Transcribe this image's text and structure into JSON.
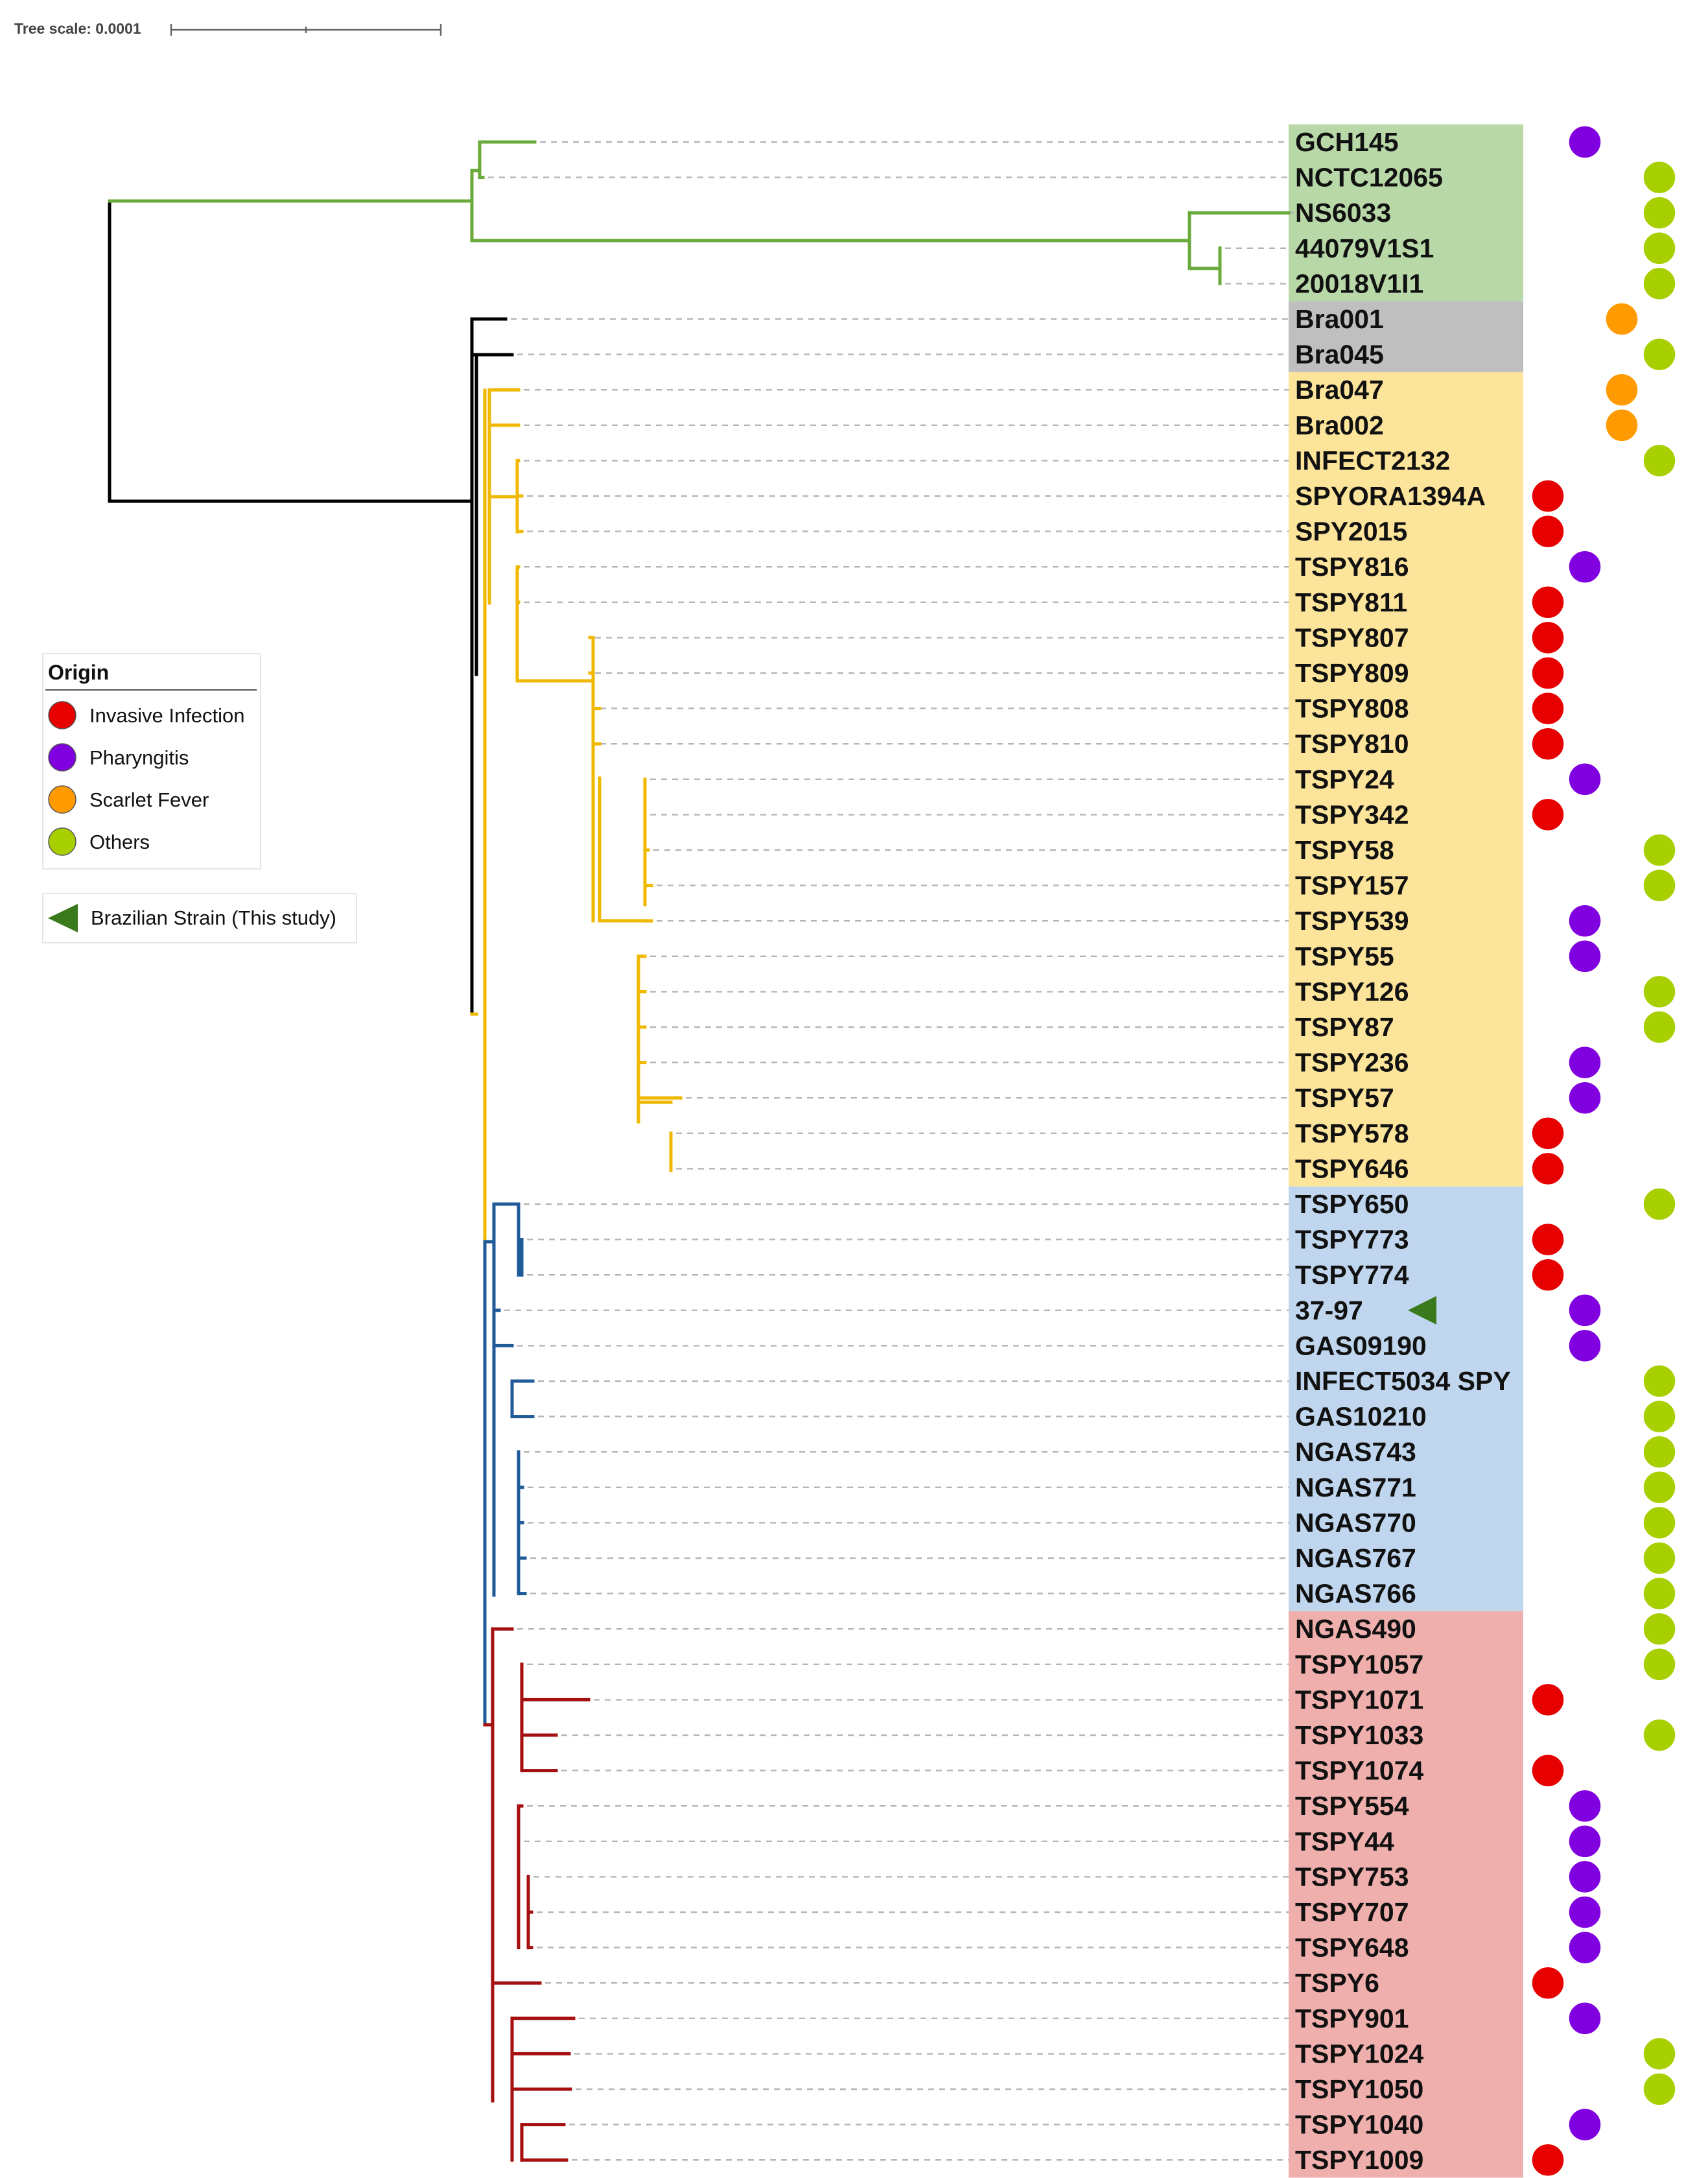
{
  "scale": {
    "label": "Tree scale: 0.0001"
  },
  "legend": {
    "title": "Origin",
    "items": [
      {
        "key": "invasive",
        "label": "Invasive Infection",
        "color": "#e60000"
      },
      {
        "key": "pharyngitis",
        "label": "Pharyngitis",
        "color": "#8000e0"
      },
      {
        "key": "scarlet",
        "label": "Scarlet Fever",
        "color": "#ff9a00"
      },
      {
        "key": "others",
        "label": "Others",
        "color": "#a8d000"
      }
    ],
    "strain_marker": {
      "label": "Brazilian Strain (This study)",
      "color": "#3a7a1c"
    }
  },
  "clade_colors": {
    "green": "#6aaa3a",
    "black": "#000000",
    "yellow": "#f0b800",
    "blue": "#1f5a99",
    "red": "#a60f0f"
  },
  "band_colors": {
    "green": "#b8d8a8",
    "gray": "#bfbfbf",
    "yellow": "#fde49b",
    "blue": "#c0d6ee",
    "red": "#efb0ad"
  },
  "leaves": [
    {
      "label": "GCH145",
      "band": "green",
      "origin": "pharyngitis"
    },
    {
      "label": "NCTC12065",
      "band": "green",
      "origin": "others"
    },
    {
      "label": "NS6033",
      "band": "green",
      "origin": "others"
    },
    {
      "label": "44079V1S1",
      "band": "green",
      "origin": "others"
    },
    {
      "label": "20018V1I1",
      "band": "green",
      "origin": "others"
    },
    {
      "label": "Bra001",
      "band": "gray",
      "origin": "scarlet"
    },
    {
      "label": "Bra045",
      "band": "gray",
      "origin": "others"
    },
    {
      "label": "Bra047",
      "band": "yellow",
      "origin": "scarlet"
    },
    {
      "label": "Bra002",
      "band": "yellow",
      "origin": "scarlet"
    },
    {
      "label": "INFECT2132",
      "band": "yellow",
      "origin": "others"
    },
    {
      "label": "SPYORA1394A",
      "band": "yellow",
      "origin": "invasive"
    },
    {
      "label": "SPY2015",
      "band": "yellow",
      "origin": "invasive"
    },
    {
      "label": "TSPY816",
      "band": "yellow",
      "origin": "pharyngitis"
    },
    {
      "label": "TSPY811",
      "band": "yellow",
      "origin": "invasive"
    },
    {
      "label": "TSPY807",
      "band": "yellow",
      "origin": "invasive"
    },
    {
      "label": "TSPY809",
      "band": "yellow",
      "origin": "invasive"
    },
    {
      "label": "TSPY808",
      "band": "yellow",
      "origin": "invasive"
    },
    {
      "label": "TSPY810",
      "band": "yellow",
      "origin": "invasive"
    },
    {
      "label": "TSPY24",
      "band": "yellow",
      "origin": "pharyngitis"
    },
    {
      "label": "TSPY342",
      "band": "yellow",
      "origin": "invasive"
    },
    {
      "label": "TSPY58",
      "band": "yellow",
      "origin": "others"
    },
    {
      "label": "TSPY157",
      "band": "yellow",
      "origin": "others"
    },
    {
      "label": "TSPY539",
      "band": "yellow",
      "origin": "pharyngitis"
    },
    {
      "label": "TSPY55",
      "band": "yellow",
      "origin": "pharyngitis"
    },
    {
      "label": "TSPY126",
      "band": "yellow",
      "origin": "others"
    },
    {
      "label": "TSPY87",
      "band": "yellow",
      "origin": "others"
    },
    {
      "label": "TSPY236",
      "band": "yellow",
      "origin": "pharyngitis"
    },
    {
      "label": "TSPY57",
      "band": "yellow",
      "origin": "pharyngitis"
    },
    {
      "label": "TSPY578",
      "band": "yellow",
      "origin": "invasive"
    },
    {
      "label": "TSPY646",
      "band": "yellow",
      "origin": "invasive"
    },
    {
      "label": "TSPY650",
      "band": "blue",
      "origin": "others"
    },
    {
      "label": "TSPY773",
      "band": "blue",
      "origin": "invasive"
    },
    {
      "label": "TSPY774",
      "band": "blue",
      "origin": "invasive"
    },
    {
      "label": "37-97",
      "band": "blue",
      "origin": "pharyngitis",
      "brazil": true
    },
    {
      "label": "GAS09190",
      "band": "blue",
      "origin": "pharyngitis"
    },
    {
      "label": "INFECT5034 SPY",
      "band": "blue",
      "origin": "others"
    },
    {
      "label": "GAS10210",
      "band": "blue",
      "origin": "others"
    },
    {
      "label": "NGAS743",
      "band": "blue",
      "origin": "others"
    },
    {
      "label": "NGAS771",
      "band": "blue",
      "origin": "others"
    },
    {
      "label": "NGAS770",
      "band": "blue",
      "origin": "others"
    },
    {
      "label": "NGAS767",
      "band": "blue",
      "origin": "others"
    },
    {
      "label": "NGAS766",
      "band": "blue",
      "origin": "others"
    },
    {
      "label": "NGAS490",
      "band": "red",
      "origin": "others"
    },
    {
      "label": "TSPY1057",
      "band": "red",
      "origin": "others"
    },
    {
      "label": "TSPY1071",
      "band": "red",
      "origin": "invasive"
    },
    {
      "label": "TSPY1033",
      "band": "red",
      "origin": "others"
    },
    {
      "label": "TSPY1074",
      "band": "red",
      "origin": "invasive"
    },
    {
      "label": "TSPY554",
      "band": "red",
      "origin": "pharyngitis"
    },
    {
      "label": "TSPY44",
      "band": "red",
      "origin": "pharyngitis"
    },
    {
      "label": "TSPY753",
      "band": "red",
      "origin": "pharyngitis"
    },
    {
      "label": "TSPY707",
      "band": "red",
      "origin": "pharyngitis"
    },
    {
      "label": "TSPY648",
      "band": "red",
      "origin": "pharyngitis"
    },
    {
      "label": "TSPY6",
      "band": "red",
      "origin": "invasive"
    },
    {
      "label": "TSPY901",
      "band": "red",
      "origin": "pharyngitis"
    },
    {
      "label": "TSPY1024",
      "band": "red",
      "origin": "others"
    },
    {
      "label": "TSPY1050",
      "band": "red",
      "origin": "others"
    },
    {
      "label": "TSPY1040",
      "band": "red",
      "origin": "pharyngitis"
    },
    {
      "label": "TSPY1009",
      "band": "red",
      "origin": "invasive"
    }
  ]
}
